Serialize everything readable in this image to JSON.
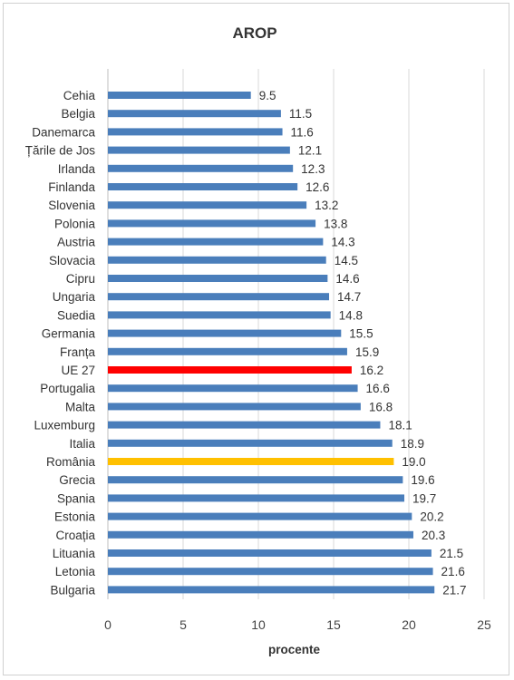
{
  "chart_data": {
    "type": "bar",
    "orientation": "horizontal",
    "title": "AROP",
    "xlabel": "procente",
    "ylabel": "",
    "xlim": [
      0,
      25
    ],
    "xticks": [
      0,
      5,
      10,
      15,
      20,
      25
    ],
    "grid": "vertical",
    "legend": "none",
    "default_color": "#4a7ebb",
    "grid_color": "#d9d9d9",
    "categories": [
      "Cehia",
      "Belgia",
      "Danemarca",
      "Țările de Jos",
      "Irlanda",
      "Finlanda",
      "Slovenia",
      "Polonia",
      "Austria",
      "Slovacia",
      "Cipru",
      "Ungaria",
      "Suedia",
      "Germania",
      "Franța",
      "UE 27",
      "Portugalia",
      "Malta",
      "Luxemburg",
      "Italia",
      "România",
      "Grecia",
      "Spania",
      "Estonia",
      "Croația",
      "Lituania",
      "Letonia",
      "Bulgaria"
    ],
    "values": [
      9.5,
      11.5,
      11.6,
      12.1,
      12.3,
      12.6,
      13.2,
      13.8,
      14.3,
      14.5,
      14.6,
      14.7,
      14.8,
      15.5,
      15.9,
      16.2,
      16.6,
      16.8,
      18.1,
      18.9,
      19.0,
      19.6,
      19.7,
      20.2,
      20.3,
      21.5,
      21.6,
      21.7
    ],
    "value_labels": [
      "9.5",
      "11.5",
      "11.6",
      "12.1",
      "12.3",
      "12.6",
      "13.2",
      "13.8",
      "14.3",
      "14.5",
      "14.6",
      "14.7",
      "14.8",
      "15.5",
      "15.9",
      "16.2",
      "16.6",
      "16.8",
      "18.1",
      "18.9",
      "19.0",
      "19.6",
      "19.7",
      "20.2",
      "20.3",
      "21.5",
      "21.6",
      "21.7"
    ],
    "highlights": [
      {
        "category": "UE 27",
        "color": "#ff0000"
      },
      {
        "category": "România",
        "color": "#ffc000"
      }
    ]
  }
}
